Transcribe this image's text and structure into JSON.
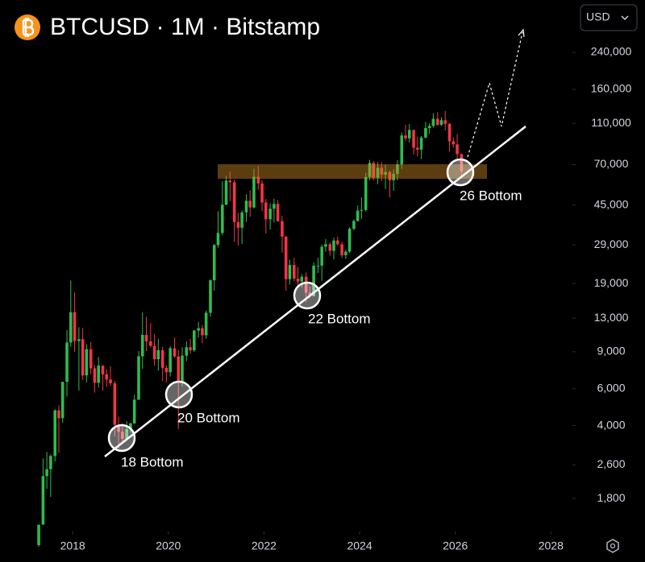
{
  "chart_data": {
    "type": "candlestick",
    "title": "BTCUSD · 1M · Bitstamp",
    "currency": "USD",
    "log_scale": true,
    "grid": false,
    "up_color": "#2ebd4e",
    "down_color": "#f23645",
    "xlim": [
      2016.48,
      2028.45
    ],
    "xticks": [
      2018,
      2020,
      2022,
      2024,
      2026,
      2028
    ],
    "ylim": [
      1254,
      426000
    ],
    "yticks": [
      {
        "value": 1800,
        "label": "1,800"
      },
      {
        "value": 2600,
        "label": "2,600"
      },
      {
        "value": 4000,
        "label": "4,000"
      },
      {
        "value": 6000,
        "label": "6,000"
      },
      {
        "value": 9000,
        "label": "9,000"
      },
      {
        "value": 13000,
        "label": "13,000"
      },
      {
        "value": 19000,
        "label": "19,000"
      },
      {
        "value": 29000,
        "label": "29,000"
      },
      {
        "value": 45000,
        "label": "45,000"
      },
      {
        "value": 70000,
        "label": "70,000"
      },
      {
        "value": 110000,
        "label": "110,000"
      },
      {
        "value": 160000,
        "label": "160,000"
      },
      {
        "value": 240000,
        "label": "240,000"
      }
    ],
    "annotations": [
      "18 Bottom",
      "20 Bottom",
      "22 Bottom",
      "26 Bottom"
    ],
    "x": [
      2017.29,
      2017.38,
      2017.46,
      2017.54,
      2017.63,
      2017.71,
      2017.79,
      2017.88,
      2017.96,
      2018.04,
      2018.13,
      2018.21,
      2018.29,
      2018.38,
      2018.46,
      2018.54,
      2018.63,
      2018.71,
      2018.79,
      2018.88,
      2018.96,
      2019.04,
      2019.13,
      2019.21,
      2019.29,
      2019.38,
      2019.46,
      2019.54,
      2019.63,
      2019.71,
      2019.79,
      2019.88,
      2019.96,
      2020.04,
      2020.13,
      2020.21,
      2020.29,
      2020.38,
      2020.46,
      2020.54,
      2020.63,
      2020.71,
      2020.79,
      2020.88,
      2020.96,
      2021.04,
      2021.13,
      2021.21,
      2021.29,
      2021.38,
      2021.46,
      2021.54,
      2021.63,
      2021.71,
      2021.79,
      2021.88,
      2021.96,
      2022.04,
      2022.13,
      2022.21,
      2022.29,
      2022.38,
      2022.46,
      2022.54,
      2022.63,
      2022.71,
      2022.79,
      2022.88,
      2022.96,
      2023.04,
      2023.13,
      2023.21,
      2023.29,
      2023.38,
      2023.46,
      2023.54,
      2023.63,
      2023.71,
      2023.79,
      2023.88,
      2023.96,
      2024.04,
      2024.13,
      2024.21,
      2024.29,
      2024.38,
      2024.46,
      2024.54,
      2024.63,
      2024.71,
      2024.79,
      2024.88,
      2024.96,
      2025.04,
      2025.13,
      2025.21,
      2025.29,
      2025.38,
      2025.46,
      2025.54,
      2025.63,
      2025.71,
      2025.79,
      2025.88,
      2025.96,
      2026.04,
      2026.13
    ],
    "open": [
      1080,
      1350,
      2300,
      2480,
      2870,
      4730,
      4340,
      6470,
      9950,
      13880,
      10110,
      10320,
      6940,
      9250,
      7500,
      6400,
      7730,
      7020,
      6630,
      6370,
      4040,
      3740,
      3460,
      3850,
      4100,
      5320,
      8560,
      10820,
      10080,
      9590,
      8290,
      9150,
      7540,
      7190,
      9350,
      8540,
      6410,
      8620,
      9450,
      9140,
      11350,
      11650,
      10780,
      13800,
      19700,
      28990,
      33110,
      45140,
      58800,
      57700,
      37300,
      35040,
      41460,
      47100,
      43820,
      61300,
      57000,
      46200,
      38480,
      43180,
      45520,
      37640,
      31790,
      19940,
      23300,
      20050,
      19430,
      20490,
      17170,
      16540,
      23130,
      23150,
      28470,
      29250,
      27220,
      30470,
      29230,
      25940,
      26960,
      34660,
      37720,
      42280,
      42580,
      61130,
      71330,
      60640,
      67530,
      62770,
      64620,
      58970,
      63330,
      70220,
      96450,
      93430,
      102400,
      84350,
      82550,
      94200,
      104600,
      107100,
      115800,
      108300,
      114000,
      109500,
      90400,
      87500,
      78600
    ],
    "high": [
      1350,
      2790,
      3000,
      2920,
      4780,
      5000,
      6470,
      11400,
      19666,
      17250,
      11790,
      11680,
      9760,
      10020,
      7780,
      8500,
      7760,
      7410,
      7680,
      6550,
      4410,
      4110,
      4200,
      4140,
      5620,
      9070,
      13880,
      13200,
      12330,
      10950,
      10370,
      9510,
      7750,
      9580,
      10500,
      9190,
      9460,
      10080,
      10380,
      11440,
      12470,
      12090,
      14100,
      19850,
      29300,
      41990,
      58350,
      61780,
      64900,
      59500,
      41330,
      42400,
      50500,
      52900,
      67000,
      69000,
      59000,
      47990,
      45820,
      48200,
      47440,
      40000,
      31980,
      24670,
      25200,
      22800,
      21080,
      21470,
      18380,
      23960,
      25250,
      29190,
      31000,
      29840,
      31440,
      31800,
      30100,
      27480,
      35200,
      38410,
      44730,
      48970,
      64000,
      73800,
      72750,
      71980,
      71960,
      70000,
      65600,
      66500,
      73600,
      99800,
      108300,
      109350,
      102750,
      95000,
      95760,
      111900,
      110400,
      123200,
      124500,
      117900,
      126200,
      110600,
      94600,
      97900,
      79000
    ],
    "low": [
      1060,
      1350,
      2000,
      1830,
      2700,
      2970,
      4120,
      5500,
      9500,
      9000,
      5870,
      6600,
      6430,
      7030,
      5750,
      6070,
      5880,
      6120,
      6180,
      3550,
      3120,
      3350,
      3390,
      3700,
      4080,
      5300,
      7440,
      9070,
      9400,
      7730,
      7300,
      6520,
      6430,
      6850,
      8440,
      3850,
      6150,
      8120,
      8820,
      8990,
      10530,
      9880,
      10370,
      13230,
      17570,
      28130,
      32300,
      44960,
      47000,
      30000,
      28800,
      29300,
      37330,
      39600,
      43290,
      53250,
      42000,
      32950,
      34320,
      37200,
      37500,
      26700,
      17600,
      18780,
      19520,
      18150,
      18190,
      15480,
      16270,
      16500,
      21350,
      19560,
      26950,
      25810,
      24750,
      28860,
      25170,
      24900,
      26560,
      34090,
      37600,
      38550,
      41880,
      59100,
      59100,
      56550,
      58400,
      53500,
      49000,
      52600,
      58900,
      66800,
      90500,
      89200,
      78200,
      76600,
      74400,
      93400,
      98200,
      105100,
      107300,
      107300,
      102000,
      80600,
      84400,
      74500,
      60000
    ],
    "close": [
      1350,
      2300,
      2480,
      2870,
      4730,
      4340,
      6470,
      9950,
      13880,
      10110,
      10320,
      6940,
      9250,
      7500,
      6400,
      7730,
      7020,
      6630,
      6370,
      4040,
      3740,
      3460,
      3850,
      4100,
      5320,
      8560,
      10820,
      10080,
      9590,
      8290,
      9150,
      7540,
      7190,
      9350,
      8540,
      6410,
      8620,
      9450,
      9140,
      11350,
      11650,
      10780,
      13800,
      19700,
      28990,
      33110,
      45140,
      58800,
      57700,
      37300,
      35040,
      41460,
      47100,
      43820,
      61300,
      57000,
      46200,
      38480,
      43180,
      45520,
      37640,
      31790,
      19940,
      23300,
      20050,
      19430,
      20490,
      17170,
      16540,
      23130,
      23150,
      28470,
      29250,
      27220,
      30470,
      29230,
      25940,
      26960,
      34660,
      37720,
      42280,
      42580,
      61130,
      71330,
      60640,
      67530,
      62770,
      64620,
      58970,
      63330,
      70220,
      96450,
      93430,
      102400,
      84350,
      82550,
      94200,
      104600,
      107100,
      115800,
      108300,
      114000,
      109500,
      90400,
      87500,
      78600,
      65000
    ]
  }
}
